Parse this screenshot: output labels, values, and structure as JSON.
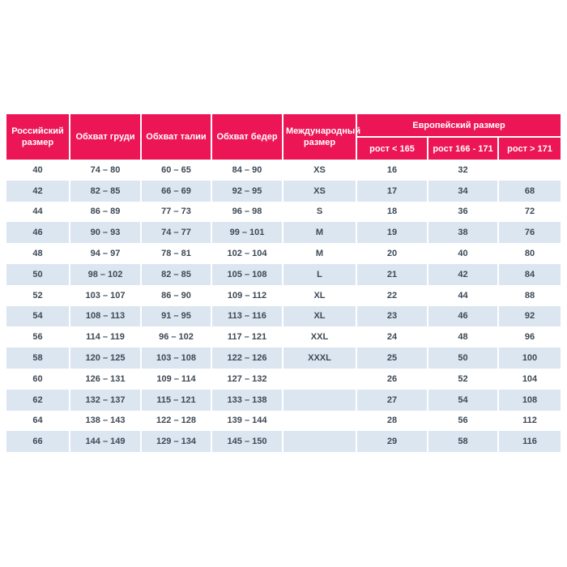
{
  "colors": {
    "header_bg": "#EC1555",
    "header_text": "#FFFFFF",
    "row_even_bg": "#DCE6F1",
    "row_odd_bg": "#FFFFFF",
    "body_text": "#3D4955"
  },
  "chart_data": {
    "type": "table",
    "column_headers": {
      "russian_size": "Российский размер",
      "chest": "Обхват груди",
      "waist": "Обхват талии",
      "hips": "Обхват бедер",
      "international": "Международный размер",
      "european_group": "Европейский размер",
      "european_sub": [
        "рост < 165",
        "рост 166 - 171",
        "рост > 171"
      ]
    },
    "rows": [
      [
        "40",
        "74 – 80",
        "60 – 65",
        "84 – 90",
        "XS",
        "16",
        "32",
        ""
      ],
      [
        "42",
        "82 – 85",
        "66 – 69",
        "92 – 95",
        "XS",
        "17",
        "34",
        "68"
      ],
      [
        "44",
        "86 – 89",
        "77 – 73",
        "96 – 98",
        "S",
        "18",
        "36",
        "72"
      ],
      [
        "46",
        "90 – 93",
        "74 – 77",
        "99 – 101",
        "M",
        "19",
        "38",
        "76"
      ],
      [
        "48",
        "94 – 97",
        "78 – 81",
        "102 – 104",
        "M",
        "20",
        "40",
        "80"
      ],
      [
        "50",
        "98 – 102",
        "82 – 85",
        "105 – 108",
        "L",
        "21",
        "42",
        "84"
      ],
      [
        "52",
        "103 – 107",
        "86 – 90",
        "109 – 112",
        "XL",
        "22",
        "44",
        "88"
      ],
      [
        "54",
        "108 – 113",
        "91 – 95",
        "113 – 116",
        "XL",
        "23",
        "46",
        "92"
      ],
      [
        "56",
        "114 – 119",
        "96 – 102",
        "117 – 121",
        "XXL",
        "24",
        "48",
        "96"
      ],
      [
        "58",
        "120 – 125",
        "103 – 108",
        "122 – 126",
        "XXXL",
        "25",
        "50",
        "100"
      ],
      [
        "60",
        "126 – 131",
        "109 – 114",
        "127 – 132",
        "",
        "26",
        "52",
        "104"
      ],
      [
        "62",
        "132 – 137",
        "115 – 121",
        "133 – 138",
        "",
        "27",
        "54",
        "108"
      ],
      [
        "64",
        "138 – 143",
        "122 – 128",
        "139 – 144",
        "",
        "28",
        "56",
        "112"
      ],
      [
        "66",
        "144 – 149",
        "129 – 134",
        "145 – 150",
        "",
        "29",
        "58",
        "116"
      ]
    ]
  }
}
